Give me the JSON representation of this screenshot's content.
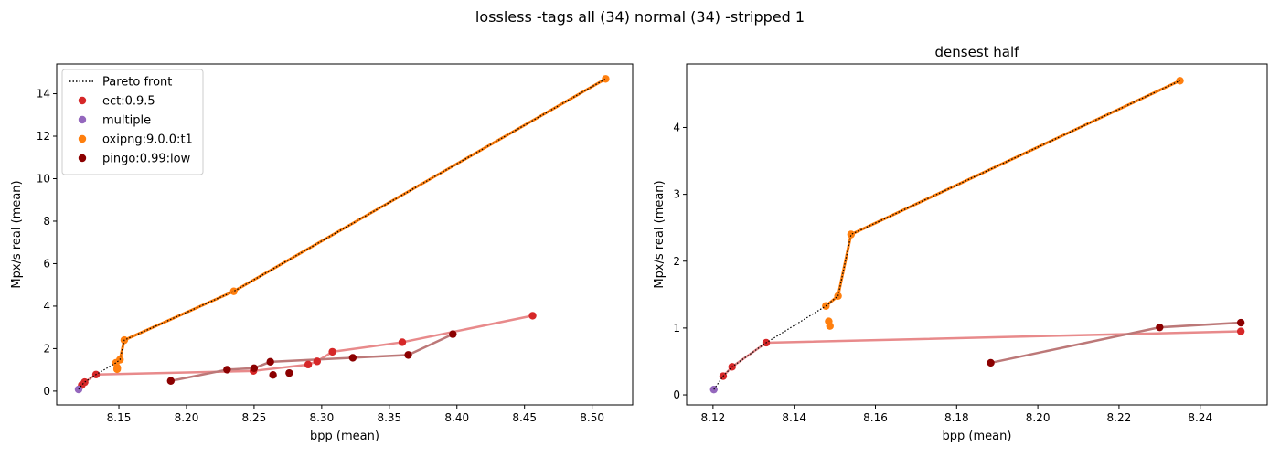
{
  "figure": {
    "suptitle": "lossless -tags all (34) normal (34) -stripped 1"
  },
  "chart_data": [
    {
      "type": "scatter",
      "title": "",
      "xlabel": "bpp (mean)",
      "ylabel": "Mpx/s real (mean)",
      "xlim": [
        8.104,
        8.53
      ],
      "ylim": [
        -0.65,
        15.4
      ],
      "xticks": [
        8.15,
        8.2,
        8.25,
        8.3,
        8.35,
        8.4,
        8.45,
        8.5
      ],
      "xtick_labels": [
        "8.15",
        "8.20",
        "8.25",
        "8.30",
        "8.35",
        "8.40",
        "8.45",
        "8.50"
      ],
      "yticks": [
        0,
        2,
        4,
        6,
        8,
        10,
        12,
        14
      ],
      "yticks_labels": [
        "0",
        "2",
        "4",
        "6",
        "8",
        "10",
        "12",
        "14"
      ],
      "grid": false,
      "legend": {
        "placement": "top-left",
        "entries": [
          {
            "label": "Pareto front",
            "kind": "line",
            "color": "#000000"
          },
          {
            "label": "ect:0.9.5",
            "kind": "marker",
            "color": "#d62728"
          },
          {
            "label": "multiple",
            "kind": "marker",
            "color": "#9467bd"
          },
          {
            "label": "oxipng:9.0.0:t1",
            "kind": "marker",
            "color": "#ff7f0e"
          },
          {
            "label": "pingo:0.99:low",
            "kind": "marker",
            "color": "#8b0000"
          }
        ]
      },
      "series": [
        {
          "name": "ect:0.9.5",
          "color": "#d62728",
          "line_color": "#e88a8b",
          "x": [
            8.1225,
            8.1247,
            8.1331,
            8.2495,
            8.29,
            8.2966,
            8.3079,
            8.3596,
            8.456
          ],
          "y": [
            0.28,
            0.42,
            0.78,
            0.95,
            1.25,
            1.4,
            1.85,
            2.3,
            3.55
          ],
          "line_order": [
            0,
            1,
            2,
            3,
            4,
            5,
            6,
            7,
            8
          ]
        },
        {
          "name": "multiple",
          "color": "#9467bd",
          "x": [
            8.1202
          ],
          "y": [
            0.08
          ]
        },
        {
          "name": "oxipng:9.0.0:t1",
          "color": "#ff7f0e",
          "x": [
            8.1478,
            8.1488,
            8.1487,
            8.1508,
            8.154,
            8.235,
            8.51
          ],
          "y": [
            1.33,
            1.1,
            1.03,
            1.48,
            2.4,
            4.7,
            14.7
          ]
        },
        {
          "name": "pingo:0.99:low",
          "color": "#8b0000",
          "line_color": "#bc7878",
          "x": [
            8.1884,
            8.23,
            8.25,
            8.262,
            8.264,
            8.276,
            8.323,
            8.364,
            8.397
          ],
          "y": [
            0.48,
            1.01,
            1.08,
            1.38,
            0.76,
            0.85,
            1.57,
            1.7,
            2.68
          ],
          "line_order": [
            0,
            1,
            2,
            3,
            6,
            7,
            8
          ]
        }
      ],
      "pareto_front": {
        "x": [
          8.1202,
          8.1225,
          8.1247,
          8.1331,
          8.1478,
          8.1508,
          8.154,
          8.235,
          8.51
        ],
        "y": [
          0.08,
          0.28,
          0.42,
          0.78,
          1.33,
          1.48,
          2.4,
          4.7,
          14.7
        ]
      }
    },
    {
      "type": "scatter",
      "title": "densest half",
      "xlabel": "bpp (mean)",
      "ylabel": "Mpx/s real (mean)",
      "xlim": [
        8.1135,
        8.2565
      ],
      "ylim": [
        -0.15,
        4.95
      ],
      "xticks": [
        8.12,
        8.14,
        8.16,
        8.18,
        8.2,
        8.22,
        8.24
      ],
      "xtick_labels": [
        "8.12",
        "8.14",
        "8.16",
        "8.18",
        "8.20",
        "8.22",
        "8.24"
      ],
      "yticks": [
        0,
        1,
        2,
        3,
        4
      ],
      "yticks_labels": [
        "0",
        "1",
        "2",
        "3",
        "4"
      ],
      "grid": false,
      "series": [
        {
          "name": "ect:0.9.5",
          "color": "#d62728",
          "line_color": "#e88a8b",
          "x": [
            8.1225,
            8.1247,
            8.1331,
            8.25
          ],
          "y": [
            0.28,
            0.42,
            0.78,
            0.95
          ],
          "line_order": [
            0,
            1,
            2,
            3
          ]
        },
        {
          "name": "multiple",
          "color": "#9467bd",
          "x": [
            8.1202
          ],
          "y": [
            0.08
          ]
        },
        {
          "name": "oxipng:9.0.0:t1",
          "color": "#ff7f0e",
          "x": [
            8.1478,
            8.1485,
            8.1488,
            8.1508,
            8.154,
            8.235
          ],
          "y": [
            1.33,
            1.1,
            1.03,
            1.48,
            2.4,
            4.7
          ]
        },
        {
          "name": "pingo:0.99:low",
          "color": "#8b0000",
          "line_color": "#bc7878",
          "x": [
            8.1884,
            8.23,
            8.25
          ],
          "y": [
            0.48,
            1.01,
            1.08
          ],
          "line_order": [
            0,
            1,
            2
          ]
        }
      ],
      "pareto_front": {
        "x": [
          8.1202,
          8.1225,
          8.1247,
          8.1331,
          8.1478,
          8.1508,
          8.154,
          8.235
        ],
        "y": [
          0.08,
          0.28,
          0.42,
          0.78,
          1.33,
          1.48,
          2.4,
          4.7
        ]
      }
    }
  ]
}
